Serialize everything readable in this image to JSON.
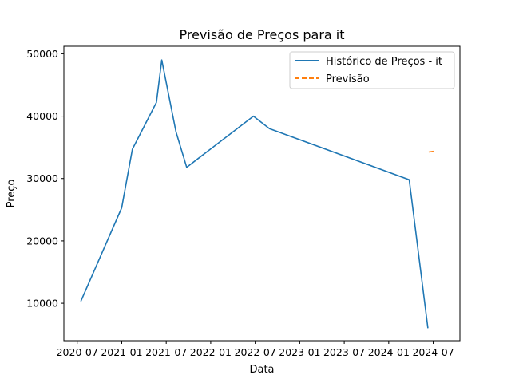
{
  "chart_data": {
    "type": "line",
    "title": "Previsão de Preços para it",
    "xlabel": "Data",
    "ylabel": "Preço",
    "xlim": [
      2020.35,
      2024.8
    ],
    "ylim": [
      4000,
      51200
    ],
    "x_tick_values": [
      2020.5,
      2021.0,
      2021.5,
      2022.0,
      2022.5,
      2023.0,
      2023.5,
      2024.0,
      2024.5
    ],
    "x_tick_labels": [
      "2020-07",
      "2021-01",
      "2021-07",
      "2022-01",
      "2022-07",
      "2023-01",
      "2023-07",
      "2024-01",
      "2024-07"
    ],
    "y_tick_values": [
      10000,
      20000,
      30000,
      40000,
      50000
    ],
    "y_tick_labels": [
      "10000",
      "20000",
      "30000",
      "40000",
      "50000"
    ],
    "legend_position": "top-right",
    "series": [
      {
        "name": "Histórico de Preços - it",
        "style": "solid",
        "color": "#1f77b4",
        "x": [
          2020.54,
          2021.0,
          2021.12,
          2021.39,
          2021.45,
          2021.61,
          2021.73,
          2022.48,
          2022.66,
          2024.23,
          2024.44
        ],
        "values": [
          10300,
          25300,
          34700,
          42200,
          49000,
          37500,
          31800,
          40000,
          38000,
          29800,
          6000
        ]
      },
      {
        "name": "Previsão",
        "style": "dashed",
        "color": "#ff7f0e",
        "x": [
          2024.45,
          2024.53
        ],
        "values": [
          34250,
          34400
        ]
      }
    ]
  }
}
